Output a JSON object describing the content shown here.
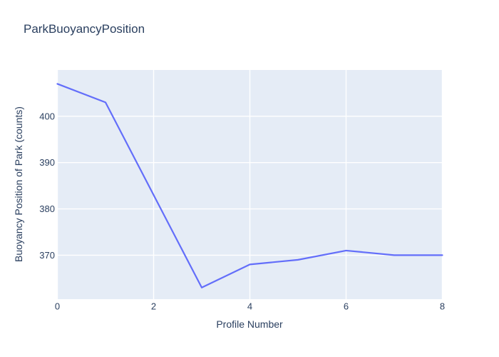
{
  "chart_data": {
    "type": "line",
    "title": "ParkBuoyancyPosition",
    "xlabel": "Profile Number",
    "ylabel": "Buoyancy Position of Park (counts)",
    "x": [
      0,
      1,
      2,
      3,
      4,
      5,
      6,
      7,
      8
    ],
    "y": [
      407,
      403,
      383,
      363,
      368,
      369,
      371,
      370,
      370
    ],
    "xticks": [
      0,
      2,
      4,
      6,
      8
    ],
    "yticks": [
      370,
      380,
      390,
      400
    ],
    "xtick_labels": [
      "0",
      "2",
      "4",
      "6",
      "8"
    ],
    "ytick_labels": [
      "370",
      "380",
      "390",
      "400"
    ],
    "xlim": [
      0,
      8
    ],
    "ylim": [
      360.5,
      410.0
    ],
    "grid": true,
    "legend_position": "none",
    "colors": {
      "line": "#636efa",
      "plot_background": "#e5ecf6",
      "grid": "#ffffff",
      "text": "#2a3f5f",
      "paper_background": "#ffffff"
    }
  }
}
